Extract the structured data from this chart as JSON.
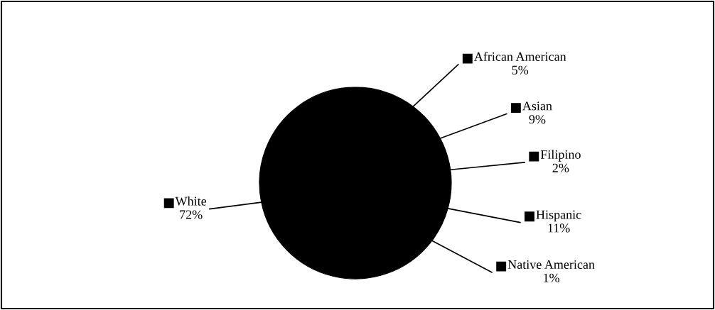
{
  "chart_data": {
    "type": "pie",
    "categories": [
      "African American",
      "Asian",
      "Filipino",
      "Hispanic",
      "Native American",
      "White"
    ],
    "values": [
      5,
      9,
      2,
      11,
      1,
      72
    ],
    "value_labels": [
      "5%",
      "9%",
      "2%",
      "11%",
      "1%",
      "72%"
    ],
    "colors": [
      "#000000",
      "#000000",
      "#000000",
      "#000000",
      "#000000",
      "#000000"
    ],
    "legend": "right"
  }
}
